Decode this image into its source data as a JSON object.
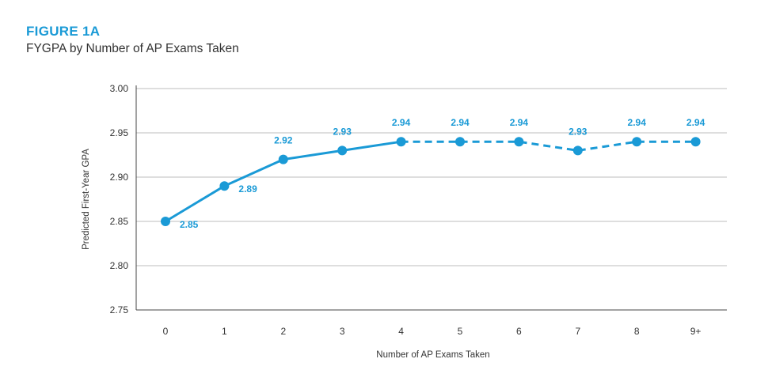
{
  "figure": {
    "label": "FIGURE 1A",
    "title": "FYGPA by Number of AP Exams Taken"
  },
  "colors": {
    "accent": "#1a9ad6",
    "grid": "#bdbdbd",
    "axis": "#444444",
    "text": "#333333"
  },
  "chart_data": {
    "type": "line",
    "title": "FYGPA by Number of AP Exams Taken",
    "xlabel": "Number of AP Exams Taken",
    "ylabel": "Predicted First-Year GPA",
    "categories": [
      "0",
      "1",
      "2",
      "3",
      "4",
      "5",
      "6",
      "7",
      "8",
      "9+"
    ],
    "values": [
      2.85,
      2.89,
      2.92,
      2.93,
      2.94,
      2.94,
      2.94,
      2.93,
      2.94,
      2.94
    ],
    "data_labels": [
      "2.85",
      "2.89",
      "2.92",
      "2.93",
      "2.94",
      "2.94",
      "2.94",
      "2.93",
      "2.94",
      "2.94"
    ],
    "ylim": [
      2.75,
      3.0
    ],
    "yticks": [
      "2.75",
      "2.80",
      "2.85",
      "2.90",
      "2.95",
      "3.00"
    ],
    "solid_through_index": 4,
    "line_style_after": "dashed",
    "grid": "horizontal",
    "legend": "none"
  }
}
